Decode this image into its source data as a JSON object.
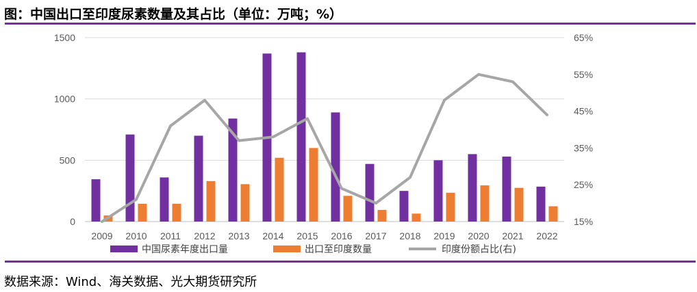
{
  "title": "图：中国出口至印度尿素数量及其占比（单位：万吨；%）",
  "source": "数据来源：Wind、海关数据、光大期货研究所",
  "colors": {
    "rule": "#7030A0",
    "bar_china": "#7030A0",
    "bar_india": "#ED7D31",
    "line_share": "#A6A6A6",
    "gridline": "#D9D9D9"
  },
  "chart_data": {
    "type": "bar+line",
    "categories": [
      "2009",
      "2010",
      "2011",
      "2012",
      "2013",
      "2014",
      "2015",
      "2016",
      "2017",
      "2018",
      "2019",
      "2020",
      "2021",
      "2022"
    ],
    "series": [
      {
        "name": "中国尿素年度出口量",
        "type": "bar",
        "axis": "left",
        "values": [
          345,
          710,
          360,
          700,
          840,
          1370,
          1380,
          890,
          470,
          250,
          500,
          550,
          530,
          285
        ]
      },
      {
        "name": "出口至印度数量",
        "type": "bar",
        "axis": "left",
        "values": [
          50,
          145,
          145,
          330,
          305,
          520,
          600,
          210,
          95,
          65,
          235,
          295,
          275,
          125
        ]
      },
      {
        "name": "印度份额占比(右)",
        "type": "line",
        "axis": "right",
        "values": [
          15,
          21,
          41,
          48,
          37,
          38,
          43,
          24,
          20,
          27,
          48,
          55,
          53,
          44
        ]
      }
    ],
    "y_left": {
      "min": 0,
      "max": 1500,
      "ticks": [
        0,
        500,
        1000,
        1500
      ],
      "tick_labels": [
        "0",
        "500",
        "1000",
        "1500"
      ]
    },
    "y_right": {
      "min": 15,
      "max": 65,
      "ticks": [
        15,
        25,
        35,
        45,
        55,
        65
      ],
      "tick_labels": [
        "15%",
        "25%",
        "35%",
        "45%",
        "55%",
        "65%"
      ]
    },
    "legend": [
      "中国尿素年度出口量",
      "出口至印度数量",
      "印度份额占比(右)"
    ],
    "legend_position": "bottom"
  }
}
